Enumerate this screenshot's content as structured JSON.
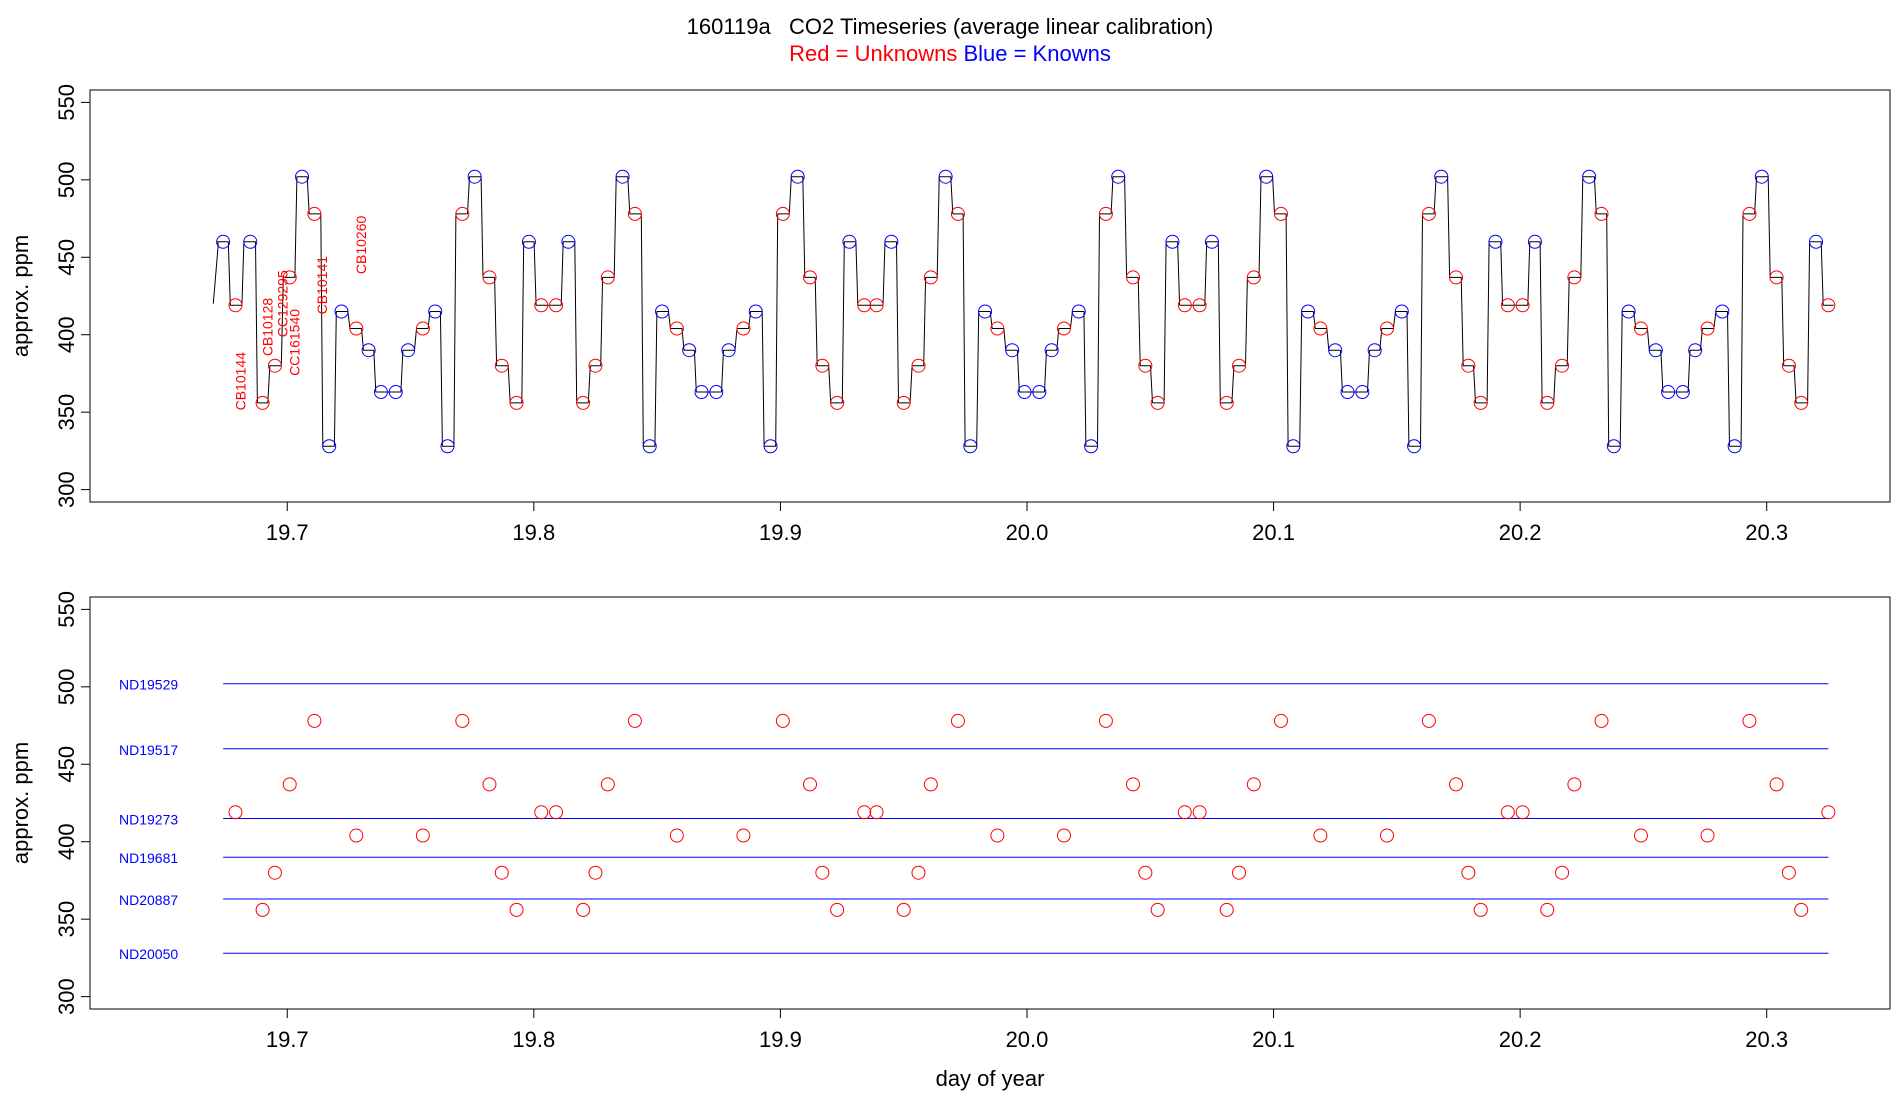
{
  "title": "160119a   CO2 Timeseries (average linear calibration)",
  "subtitle": {
    "red_label": "Red = Unknowns",
    "blue_label": "Blue = Knowns"
  },
  "colors": {
    "unknowns": "#ff0000",
    "knowns": "#0000ff",
    "trace": "#000000"
  },
  "chart_data": [
    {
      "type": "line",
      "panel": "top",
      "ylabel": "approx. ppm",
      "xlabel": "",
      "xlim": [
        19.62,
        20.35
      ],
      "ylim": [
        292,
        558
      ],
      "x_ticks": [
        "19.7",
        "19.8",
        "19.9",
        "20.0",
        "20.1",
        "20.2",
        "20.3"
      ],
      "y_ticks": [
        "300",
        "350",
        "400",
        "450",
        "500",
        "550"
      ],
      "grid": false,
      "series": [
        {
          "name": "Knowns",
          "marker": "circle",
          "color": "#0000ff",
          "points": [
            {
              "x": 19.674,
              "y": 460
            },
            {
              "x": 19.685,
              "y": 460
            },
            {
              "x": 19.706,
              "y": 502
            },
            {
              "x": 19.717,
              "y": 328
            },
            {
              "x": 19.722,
              "y": 415
            },
            {
              "x": 19.733,
              "y": 390
            },
            {
              "x": 19.738,
              "y": 363
            },
            {
              "x": 19.744,
              "y": 363
            },
            {
              "x": 19.749,
              "y": 390
            },
            {
              "x": 19.76,
              "y": 415
            },
            {
              "x": 19.765,
              "y": 328
            },
            {
              "x": 19.776,
              "y": 502
            },
            {
              "x": 19.798,
              "y": 460
            },
            {
              "x": 19.814,
              "y": 460
            },
            {
              "x": 19.836,
              "y": 502
            },
            {
              "x": 19.847,
              "y": 328
            },
            {
              "x": 19.852,
              "y": 415
            },
            {
              "x": 19.863,
              "y": 390
            },
            {
              "x": 19.868,
              "y": 363
            },
            {
              "x": 19.874,
              "y": 363
            },
            {
              "x": 19.879,
              "y": 390
            },
            {
              "x": 19.89,
              "y": 415
            },
            {
              "x": 19.896,
              "y": 328
            },
            {
              "x": 19.907,
              "y": 502
            },
            {
              "x": 19.928,
              "y": 460
            },
            {
              "x": 19.945,
              "y": 460
            },
            {
              "x": 19.967,
              "y": 502
            },
            {
              "x": 19.977,
              "y": 328
            },
            {
              "x": 19.983,
              "y": 415
            },
            {
              "x": 19.994,
              "y": 390
            },
            {
              "x": 19.999,
              "y": 363
            },
            {
              "x": 20.005,
              "y": 363
            },
            {
              "x": 20.01,
              "y": 390
            },
            {
              "x": 20.021,
              "y": 415
            },
            {
              "x": 20.026,
              "y": 328
            },
            {
              "x": 20.037,
              "y": 502
            },
            {
              "x": 20.059,
              "y": 460
            },
            {
              "x": 20.075,
              "y": 460
            },
            {
              "x": 20.097,
              "y": 502
            },
            {
              "x": 20.108,
              "y": 328
            },
            {
              "x": 20.114,
              "y": 415
            },
            {
              "x": 20.125,
              "y": 390
            },
            {
              "x": 20.13,
              "y": 363
            },
            {
              "x": 20.136,
              "y": 363
            },
            {
              "x": 20.141,
              "y": 390
            },
            {
              "x": 20.152,
              "y": 415
            },
            {
              "x": 20.157,
              "y": 328
            },
            {
              "x": 20.168,
              "y": 502
            },
            {
              "x": 20.19,
              "y": 460
            },
            {
              "x": 20.206,
              "y": 460
            },
            {
              "x": 20.228,
              "y": 502
            },
            {
              "x": 20.238,
              "y": 328
            },
            {
              "x": 20.244,
              "y": 415
            },
            {
              "x": 20.255,
              "y": 390
            },
            {
              "x": 20.26,
              "y": 363
            },
            {
              "x": 20.266,
              "y": 363
            },
            {
              "x": 20.271,
              "y": 390
            },
            {
              "x": 20.282,
              "y": 415
            },
            {
              "x": 20.287,
              "y": 328
            },
            {
              "x": 20.298,
              "y": 502
            },
            {
              "x": 20.32,
              "y": 460
            }
          ]
        },
        {
          "name": "Unknowns",
          "marker": "circle",
          "color": "#ff0000",
          "points": [
            {
              "x": 19.679,
              "y": 419
            },
            {
              "x": 19.69,
              "y": 356
            },
            {
              "x": 19.695,
              "y": 380
            },
            {
              "x": 19.701,
              "y": 437
            },
            {
              "x": 19.711,
              "y": 478
            },
            {
              "x": 19.728,
              "y": 404
            },
            {
              "x": 19.755,
              "y": 404
            },
            {
              "x": 19.771,
              "y": 478
            },
            {
              "x": 19.782,
              "y": 437
            },
            {
              "x": 19.787,
              "y": 380
            },
            {
              "x": 19.793,
              "y": 356
            },
            {
              "x": 19.803,
              "y": 419
            },
            {
              "x": 19.809,
              "y": 419
            },
            {
              "x": 19.82,
              "y": 356
            },
            {
              "x": 19.825,
              "y": 380
            },
            {
              "x": 19.83,
              "y": 437
            },
            {
              "x": 19.841,
              "y": 478
            },
            {
              "x": 19.858,
              "y": 404
            },
            {
              "x": 19.885,
              "y": 404
            },
            {
              "x": 19.901,
              "y": 478
            },
            {
              "x": 19.912,
              "y": 437
            },
            {
              "x": 19.917,
              "y": 380
            },
            {
              "x": 19.923,
              "y": 356
            },
            {
              "x": 19.934,
              "y": 419
            },
            {
              "x": 19.939,
              "y": 419
            },
            {
              "x": 19.95,
              "y": 356
            },
            {
              "x": 19.956,
              "y": 380
            },
            {
              "x": 19.961,
              "y": 437
            },
            {
              "x": 19.972,
              "y": 478
            },
            {
              "x": 19.988,
              "y": 404
            },
            {
              "x": 20.015,
              "y": 404
            },
            {
              "x": 20.032,
              "y": 478
            },
            {
              "x": 20.043,
              "y": 437
            },
            {
              "x": 20.048,
              "y": 380
            },
            {
              "x": 20.053,
              "y": 356
            },
            {
              "x": 20.064,
              "y": 419
            },
            {
              "x": 20.07,
              "y": 419
            },
            {
              "x": 20.081,
              "y": 356
            },
            {
              "x": 20.086,
              "y": 380
            },
            {
              "x": 20.092,
              "y": 437
            },
            {
              "x": 20.103,
              "y": 478
            },
            {
              "x": 20.119,
              "y": 404
            },
            {
              "x": 20.146,
              "y": 404
            },
            {
              "x": 20.163,
              "y": 478
            },
            {
              "x": 20.174,
              "y": 437
            },
            {
              "x": 20.179,
              "y": 380
            },
            {
              "x": 20.184,
              "y": 356
            },
            {
              "x": 20.195,
              "y": 419
            },
            {
              "x": 20.201,
              "y": 419
            },
            {
              "x": 20.211,
              "y": 356
            },
            {
              "x": 20.217,
              "y": 380
            },
            {
              "x": 20.222,
              "y": 437
            },
            {
              "x": 20.233,
              "y": 478
            },
            {
              "x": 20.249,
              "y": 404
            },
            {
              "x": 20.276,
              "y": 404
            },
            {
              "x": 20.293,
              "y": 478
            },
            {
              "x": 20.304,
              "y": 437
            },
            {
              "x": 20.309,
              "y": 380
            },
            {
              "x": 20.314,
              "y": 356
            },
            {
              "x": 20.325,
              "y": 419
            }
          ]
        }
      ],
      "annotations": [
        {
          "text": "CB10144",
          "x": 19.681,
          "y": 370,
          "rotation": -90,
          "color": "#ff0000"
        },
        {
          "text": "CB10128",
          "x": 19.692,
          "y": 405,
          "rotation": -90,
          "color": "#ff0000"
        },
        {
          "text": "CC129295",
          "x": 19.698,
          "y": 420,
          "rotation": -90,
          "color": "#ff0000"
        },
        {
          "text": "CC161540",
          "x": 19.703,
          "y": 395,
          "rotation": -90,
          "color": "#ff0000"
        },
        {
          "text": "CB10141",
          "x": 19.714,
          "y": 432,
          "rotation": -90,
          "color": "#ff0000"
        },
        {
          "text": "CB10260",
          "x": 19.73,
          "y": 458,
          "rotation": -90,
          "color": "#ff0000"
        }
      ]
    },
    {
      "type": "scatter",
      "panel": "bottom",
      "ylabel": "approx. ppm",
      "xlabel": "day of year",
      "xlim": [
        19.62,
        20.35
      ],
      "ylim": [
        292,
        558
      ],
      "x_ticks": [
        "19.7",
        "19.8",
        "19.9",
        "20.0",
        "20.1",
        "20.2",
        "20.3"
      ],
      "y_ticks": [
        "300",
        "350",
        "400",
        "450",
        "500",
        "550"
      ],
      "grid": false,
      "reference_lines": [
        {
          "name": "ND19529",
          "y": 502,
          "x_range": [
            19.674,
            20.325
          ],
          "color": "#0000ff"
        },
        {
          "name": "ND19517",
          "y": 460,
          "x_range": [
            19.674,
            20.325
          ],
          "color": "#0000ff"
        },
        {
          "name": "ND19273",
          "y": 415,
          "x_range": [
            19.674,
            20.325
          ],
          "color": "#0000ff"
        },
        {
          "name": "ND19681",
          "y": 390,
          "x_range": [
            19.674,
            20.325
          ],
          "color": "#0000ff"
        },
        {
          "name": "ND20887",
          "y": 363,
          "x_range": [
            19.674,
            20.325
          ],
          "color": "#0000ff"
        },
        {
          "name": "ND20050",
          "y": 328,
          "x_range": [
            19.674,
            20.325
          ],
          "color": "#0000ff"
        }
      ],
      "series_ref": "Unknowns"
    }
  ]
}
